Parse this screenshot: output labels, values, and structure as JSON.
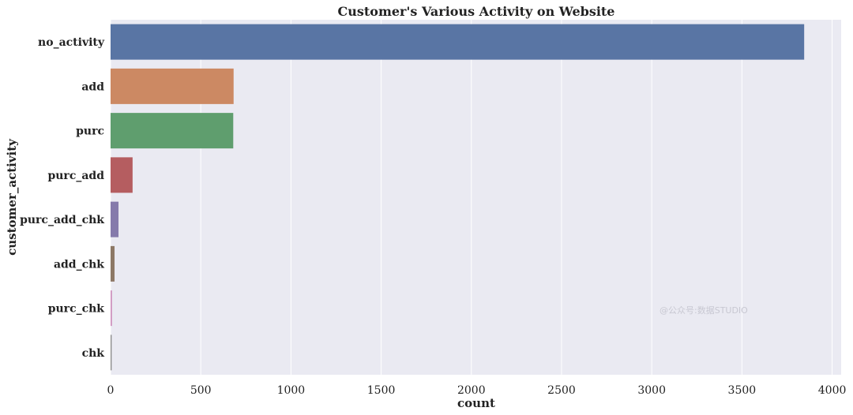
{
  "chart_data": {
    "type": "bar",
    "orientation": "horizontal",
    "title": "Customer's Various Activity on Website",
    "xlabel": "count",
    "ylabel": "customer_activity",
    "categories": [
      "no_activity",
      "add",
      "purc",
      "purc_add",
      "purc_add_chk",
      "add_chk",
      "purc_chk",
      "chk"
    ],
    "values": [
      3845,
      682,
      680,
      122,
      44,
      22,
      8,
      6
    ],
    "colors": [
      "#5975a4",
      "#cc8963",
      "#5f9e6e",
      "#b55d60",
      "#857aab",
      "#8d7866",
      "#d095bf",
      "#8c8c8c"
    ],
    "xlim": [
      0,
      4050
    ],
    "xticks": [
      0,
      500,
      1000,
      1500,
      2000,
      2500,
      3000,
      3500,
      4000
    ],
    "grid": true,
    "background": "#eaeaf2",
    "watermark": "@公众号:数据STUDIO"
  }
}
